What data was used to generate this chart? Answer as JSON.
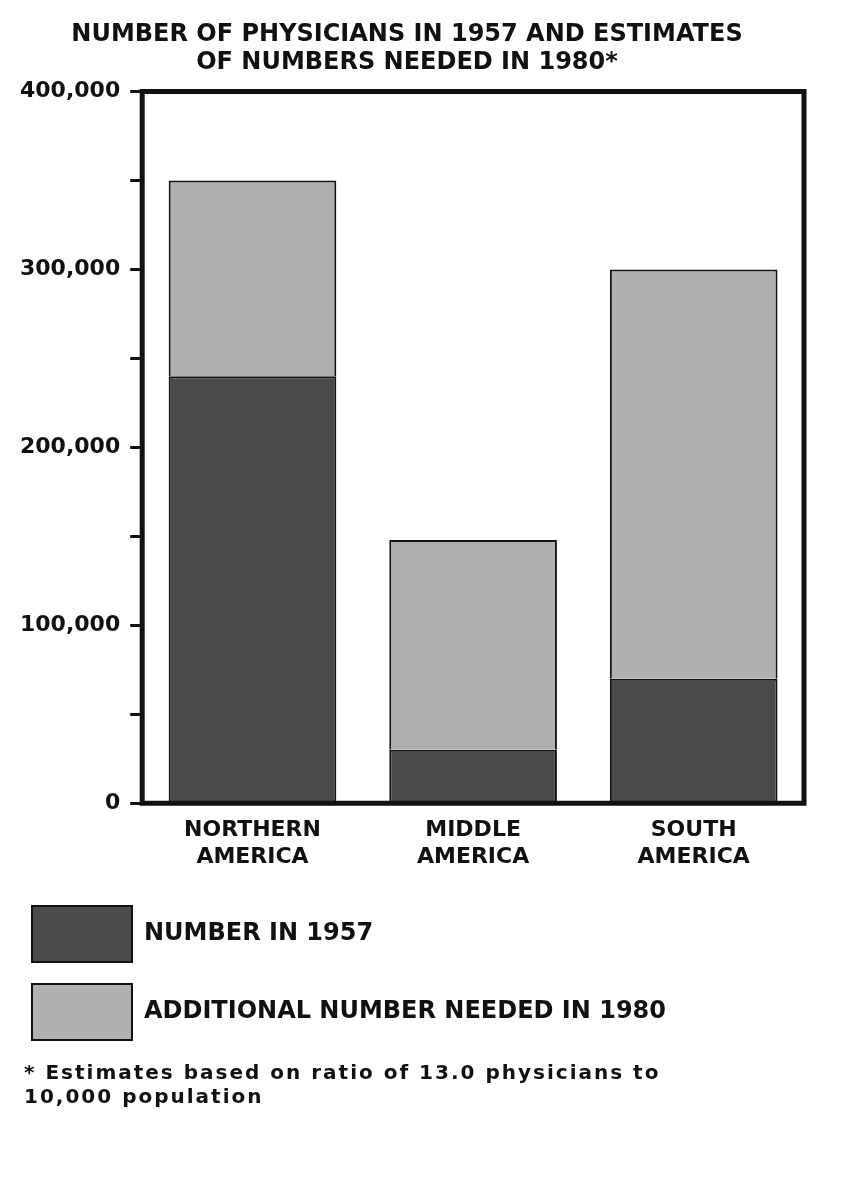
{
  "chart_data": {
    "type": "bar",
    "title": [
      "NUMBER OF PHYSICIANS IN 1957 AND ESTIMATES",
      "OF NUMBERS NEEDED IN 1980*"
    ],
    "categories": [
      [
        "NORTHERN",
        "AMERICA"
      ],
      [
        "MIDDLE",
        "AMERICA"
      ],
      [
        "SOUTH",
        "AMERICA"
      ]
    ],
    "stacked": true,
    "series": [
      {
        "name": "NUMBER IN 1957",
        "color": "#4a4a4a",
        "values": [
          240000,
          30000,
          70000
        ]
      },
      {
        "name": "ADDITIONAL NUMBER NEEDED IN 1980",
        "color": "#b0b0b0",
        "values": [
          110000,
          118000,
          230000
        ]
      }
    ],
    "ylim": [
      0,
      400000
    ],
    "yticks": [
      0,
      {
        "value": 50000,
        "label": null
      },
      {
        "value": 100000,
        "label": "100,000"
      },
      {
        "value": 150000,
        "label": null
      },
      {
        "value": 200000,
        "label": "200,000"
      },
      {
        "value": 250000,
        "label": null
      },
      {
        "value": 300000,
        "label": "300,000"
      },
      {
        "value": 350000,
        "label": null
      },
      {
        "value": 400000,
        "label": "400,000"
      }
    ],
    "grid": false,
    "legend": "bottom",
    "annotations": [
      "* Estimates based on ratio of 13.0 physicians to 10,000 population"
    ]
  }
}
